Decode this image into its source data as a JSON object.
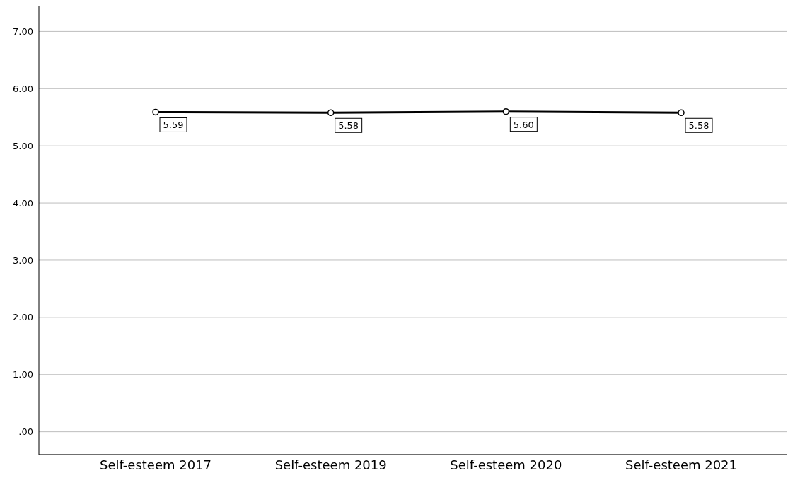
{
  "chart_data": {
    "type": "line",
    "categories": [
      "Self-esteem 2017",
      "Self-esteem 2019",
      "Self-esteem 2020",
      "Self-esteem 2021"
    ],
    "series": [
      {
        "color": "#000000",
        "values": [
          5.59,
          5.58,
          5.6,
          5.58
        ],
        "value_labels": [
          "5.59",
          "5.58",
          "5.60",
          "5.58"
        ]
      }
    ],
    "ylim": [
      -0.4,
      7.45
    ],
    "yticks": [
      {
        "value": 0,
        "label": ".00"
      },
      {
        "value": 1,
        "label": "1.00"
      },
      {
        "value": 2,
        "label": "2.00"
      },
      {
        "value": 3,
        "label": "3.00"
      },
      {
        "value": 4,
        "label": "4.00"
      },
      {
        "value": 5,
        "label": "5.00"
      },
      {
        "value": 6,
        "label": "6.00"
      },
      {
        "value": 7,
        "label": "7.00"
      }
    ],
    "grid": "y",
    "marker": "circle",
    "line_style": "solid",
    "legend": false
  }
}
